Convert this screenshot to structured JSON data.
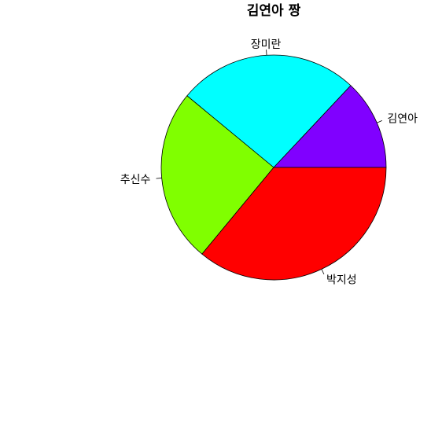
{
  "chart_data": {
    "type": "pie",
    "title": "김연아 짱",
    "categories": [
      "김연아",
      "장미란",
      "추신수",
      "박지성"
    ],
    "values": [
      13,
      26,
      25,
      36
    ],
    "colors": [
      "#8000FF",
      "#00FFFF",
      "#80FF00",
      "#FF0000"
    ],
    "start_angle_deg": 0,
    "direction": "counterclockwise",
    "legend": "none",
    "labels_outside": true
  }
}
